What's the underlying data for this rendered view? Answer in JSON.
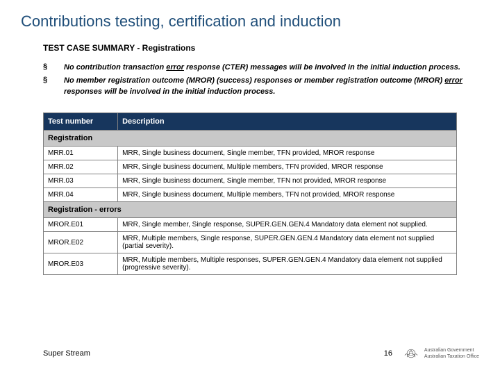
{
  "title": "Contributions testing, certification and induction",
  "subtitle": "TEST CASE SUMMARY - Registrations",
  "bullets": [
    {
      "text_html": "No contribution transaction <span class=\"uline\">error</span> response (CTER) messages will be involved in the initial induction process."
    },
    {
      "text_html": "No member registration outcome (MROR) (success) responses or member registration outcome (MROR) <span class=\"uline\">error</span> responses will be involved in the initial induction process."
    }
  ],
  "table": {
    "columns": [
      "Test number",
      "Description"
    ],
    "col_widths": [
      "18%",
      "82%"
    ],
    "header_bg": "#17365d",
    "header_fg": "#ffffff",
    "section_bg": "#c8c8c8",
    "border_color": "#808080",
    "font_size": 10,
    "rows": [
      {
        "type": "section",
        "label": "Registration"
      },
      {
        "type": "data",
        "num": "MRR.01",
        "desc": "MRR, Single business document, Single member, TFN provided, MROR response"
      },
      {
        "type": "data",
        "num": "MRR.02",
        "desc": "MRR, Single business document, Multiple members, TFN provided, MROR response"
      },
      {
        "type": "data",
        "num": "MRR.03",
        "desc": "MRR, Single business document, Single member, TFN not provided, MROR response"
      },
      {
        "type": "data",
        "num": "MRR.04",
        "desc": "MRR, Single business document, Multiple members, TFN not provided, MROR response"
      },
      {
        "type": "section",
        "label": "Registration - errors"
      },
      {
        "type": "data",
        "num": "MROR.E01",
        "desc": "MRR, Single member, Single response, SUPER.GEN.GEN.4 Mandatory data element not supplied."
      },
      {
        "type": "data",
        "num": "MROR.E02",
        "desc": "MRR, Multiple members, Single response, SUPER.GEN.GEN.4 Mandatory data element not supplied (partial severity)."
      },
      {
        "type": "data",
        "num": "MROR.E03",
        "desc": "MRR, Multiple members, Multiple responses, SUPER.GEN.GEN.4 Mandatory data element not supplied (progressive severity)."
      }
    ]
  },
  "footer": {
    "left": "Super Stream",
    "page_number": "16",
    "crest_line1": "Australian Government",
    "crest_line2": "Australian Taxation Office"
  },
  "colors": {
    "title": "#1f4e79",
    "text": "#000000",
    "background": "#ffffff"
  }
}
